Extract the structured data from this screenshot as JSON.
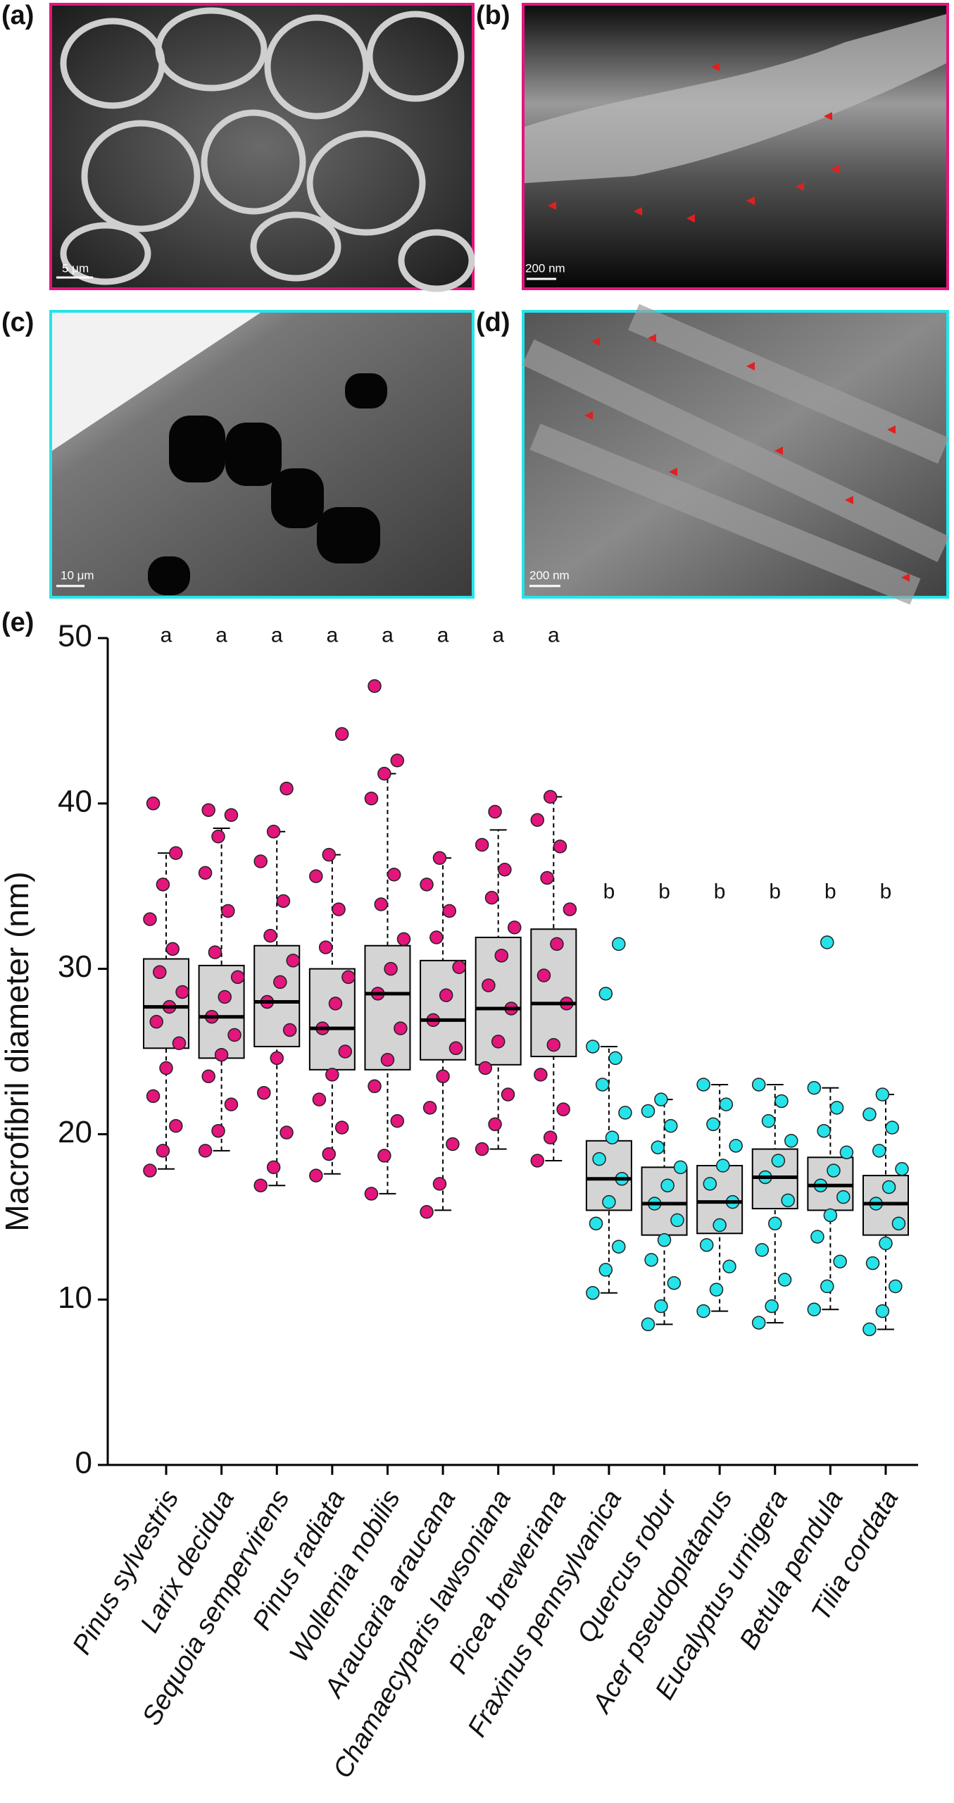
{
  "panels": {
    "a": {
      "label": "(a)",
      "scale": "5 μm"
    },
    "b": {
      "label": "(b)",
      "scale": "200 nm"
    },
    "c": {
      "label": "(c)",
      "scale": "10 μm"
    },
    "d": {
      "label": "(d)",
      "scale": "200 nm"
    },
    "e": {
      "label": "(e)"
    }
  },
  "chart_data": {
    "type": "box",
    "ylabel": "Macrofibril diameter (nm)",
    "ylim": [
      0,
      50
    ],
    "yticks": [
      0,
      10,
      20,
      30,
      40,
      50
    ],
    "categories": [
      "Pinus sylvestris",
      "Larix decidua",
      "Sequoia sempervirens",
      "Pinus radiata",
      "Wollemia nobilis",
      "Araucaria araucana",
      "Chamaecyparis lawsoniana",
      "Picea breweriana",
      "Fraxinus pennsylvanica",
      "Quercus robur",
      "Acer pseudoplatanus",
      "Eucalyptus urnigera",
      "Betula pendula",
      "Tilia cordata"
    ],
    "group_labels": [
      "a",
      "a",
      "a",
      "a",
      "a",
      "a",
      "a",
      "a",
      "b",
      "b",
      "b",
      "b",
      "b",
      "b"
    ],
    "colors": [
      "#e4157c",
      "#e4157c",
      "#e4157c",
      "#e4157c",
      "#e4157c",
      "#e4157c",
      "#e4157c",
      "#e4157c",
      "#26e3ea",
      "#26e3ea",
      "#26e3ea",
      "#26e3ea",
      "#26e3ea",
      "#26e3ea"
    ],
    "box_color": "#d4d4d4",
    "whisker_low": [
      17.9,
      19.0,
      16.9,
      17.6,
      16.4,
      15.4,
      19.1,
      18.4,
      10.4,
      8.5,
      9.3,
      8.6,
      9.4,
      8.2
    ],
    "q1": [
      25.2,
      24.6,
      25.3,
      23.9,
      23.9,
      24.5,
      24.2,
      24.7,
      15.4,
      13.9,
      14.0,
      15.5,
      15.4,
      13.9
    ],
    "median": [
      27.7,
      27.1,
      28.0,
      26.4,
      28.5,
      26.9,
      27.6,
      27.9,
      17.3,
      15.8,
      15.9,
      17.4,
      16.9,
      15.8
    ],
    "q3": [
      30.6,
      30.2,
      31.4,
      30.0,
      31.4,
      30.5,
      31.9,
      32.4,
      19.6,
      18.0,
      18.1,
      19.1,
      18.6,
      17.5
    ],
    "whisker_high": [
      37.0,
      38.5,
      38.3,
      36.9,
      41.8,
      36.7,
      38.4,
      40.4,
      25.3,
      22.1,
      23.0,
      23.0,
      22.8,
      22.4
    ],
    "points": [
      [
        17.8,
        19.0,
        20.5,
        22.3,
        24.0,
        25.5,
        26.8,
        27.7,
        28.6,
        29.8,
        31.2,
        33.0,
        35.1,
        37.0,
        40.0
      ],
      [
        19.0,
        20.2,
        21.8,
        23.5,
        24.8,
        26.0,
        27.1,
        28.3,
        29.5,
        31.0,
        33.5,
        35.8,
        38.0,
        39.3,
        39.6
      ],
      [
        16.9,
        18.0,
        20.1,
        22.5,
        24.6,
        26.3,
        28.0,
        29.2,
        30.5,
        32.0,
        34.1,
        36.5,
        38.3,
        40.9
      ],
      [
        17.5,
        18.8,
        20.4,
        22.1,
        23.6,
        25.0,
        26.4,
        27.9,
        29.5,
        31.3,
        33.6,
        35.6,
        36.9,
        44.2
      ],
      [
        16.4,
        18.7,
        20.8,
        22.9,
        24.5,
        26.4,
        28.5,
        30.0,
        31.8,
        33.9,
        35.7,
        40.3,
        41.8,
        42.6,
        47.1
      ],
      [
        15.3,
        17.0,
        19.4,
        21.6,
        23.5,
        25.2,
        26.9,
        28.4,
        30.1,
        31.9,
        33.5,
        35.1,
        36.7
      ],
      [
        19.1,
        20.6,
        22.4,
        24.0,
        25.6,
        27.6,
        29.0,
        30.8,
        32.5,
        34.3,
        36.0,
        37.5,
        39.5
      ],
      [
        18.4,
        19.8,
        21.5,
        23.6,
        25.4,
        27.9,
        29.6,
        31.5,
        33.6,
        35.5,
        37.4,
        39.0,
        40.4
      ],
      [
        10.4,
        11.8,
        13.2,
        14.6,
        15.9,
        17.3,
        18.5,
        19.8,
        21.3,
        23.0,
        24.6,
        25.3,
        28.5,
        31.5
      ],
      [
        8.5,
        9.6,
        11.0,
        12.4,
        13.6,
        14.8,
        15.8,
        16.9,
        18.0,
        19.2,
        20.5,
        21.4,
        22.1
      ],
      [
        9.3,
        10.6,
        12.0,
        13.3,
        14.5,
        15.9,
        17.0,
        18.1,
        19.3,
        20.6,
        21.8,
        23.0
      ],
      [
        8.6,
        9.6,
        11.2,
        13.0,
        14.6,
        16.0,
        17.4,
        18.4,
        19.6,
        20.8,
        22.0,
        23.0
      ],
      [
        9.4,
        10.8,
        12.3,
        13.8,
        15.1,
        16.2,
        16.9,
        17.8,
        18.9,
        20.2,
        21.6,
        22.8,
        31.6
      ],
      [
        8.2,
        9.3,
        10.8,
        12.2,
        13.4,
        14.6,
        15.8,
        16.8,
        17.9,
        19.0,
        20.4,
        21.2,
        22.4
      ]
    ]
  }
}
